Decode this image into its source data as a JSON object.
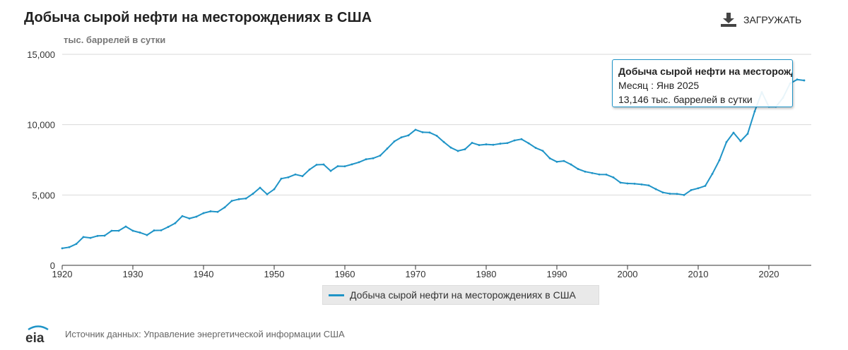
{
  "header": {
    "title": "Добыча сырой нефти на месторождениях в США",
    "download_label": "ЗАГРУЖАТЬ"
  },
  "tooltip": {
    "title": "Добыча сырой нефти на месторожден",
    "month_line": "Месяц : Янв 2025",
    "value_line": "13,146 тыс. баррелей в сутки"
  },
  "legend": {
    "label": "Добыча сырой нефти на месторождениях в США"
  },
  "footer": {
    "logo_text": "eia",
    "source": "Источник данных: Управление энергетической информации США"
  },
  "colors": {
    "series": "#1f94c7",
    "grid": "#d9d9d9",
    "axis": "#333333"
  },
  "chart_data": {
    "type": "line",
    "title": "Добыча сырой нефти на месторождениях в США",
    "ylabel": "тыс. баррелей в сутки",
    "xlabel": "",
    "xlim": [
      1920,
      2026
    ],
    "ylim": [
      0,
      15000
    ],
    "xticks": [
      1920,
      1930,
      1940,
      1950,
      1960,
      1970,
      1980,
      1990,
      2000,
      2010,
      2020
    ],
    "yticks": [
      0,
      5000,
      10000,
      15000
    ],
    "ytick_labels": [
      "0",
      "5,000",
      "10,000",
      "15,000"
    ],
    "legend": "bottom-center",
    "series": [
      {
        "name": "Добыча сырой нефти на месторождениях в США",
        "x": [
          1920,
          1921,
          1922,
          1923,
          1924,
          1925,
          1926,
          1927,
          1928,
          1929,
          1930,
          1931,
          1932,
          1933,
          1934,
          1935,
          1936,
          1937,
          1938,
          1939,
          1940,
          1941,
          1942,
          1943,
          1944,
          1945,
          1946,
          1947,
          1948,
          1949,
          1950,
          1951,
          1952,
          1953,
          1954,
          1955,
          1956,
          1957,
          1958,
          1959,
          1960,
          1961,
          1962,
          1963,
          1964,
          1965,
          1966,
          1967,
          1968,
          1969,
          1970,
          1971,
          1972,
          1973,
          1974,
          1975,
          1976,
          1977,
          1978,
          1979,
          1980,
          1981,
          1982,
          1983,
          1984,
          1985,
          1986,
          1987,
          1988,
          1989,
          1990,
          1991,
          1992,
          1993,
          1994,
          1995,
          1996,
          1997,
          1998,
          1999,
          2000,
          2001,
          2002,
          2003,
          2004,
          2005,
          2006,
          2007,
          2008,
          2009,
          2010,
          2011,
          2012,
          2013,
          2014,
          2015,
          2016,
          2017,
          2018,
          2019,
          2020,
          2021,
          2022,
          2023,
          2024,
          2025
        ],
        "values": [
          1210,
          1290,
          1520,
          2010,
          1950,
          2090,
          2110,
          2460,
          2460,
          2760,
          2460,
          2330,
          2150,
          2480,
          2490,
          2730,
          3000,
          3500,
          3330,
          3460,
          3710,
          3840,
          3800,
          4120,
          4580,
          4700,
          4750,
          5090,
          5520,
          5050,
          5410,
          6160,
          6260,
          6460,
          6340,
          6810,
          7150,
          7170,
          6710,
          7050,
          7040,
          7180,
          7330,
          7540,
          7610,
          7800,
          8300,
          8810,
          9100,
          9240,
          9640,
          9460,
          9440,
          9210,
          8770,
          8370,
          8130,
          8250,
          8710,
          8550,
          8600,
          8570,
          8650,
          8690,
          8880,
          8970,
          8680,
          8350,
          8140,
          7610,
          7360,
          7420,
          7170,
          6850,
          6660,
          6560,
          6460,
          6450,
          6250,
          5880,
          5820,
          5800,
          5750,
          5680,
          5420,
          5180,
          5090,
          5080,
          5000,
          5350,
          5480,
          5650,
          6500,
          7470,
          8760,
          9430,
          8830,
          9350,
          10950,
          12310,
          11280,
          11280,
          11910,
          12930,
          13210,
          13146
        ]
      }
    ]
  }
}
